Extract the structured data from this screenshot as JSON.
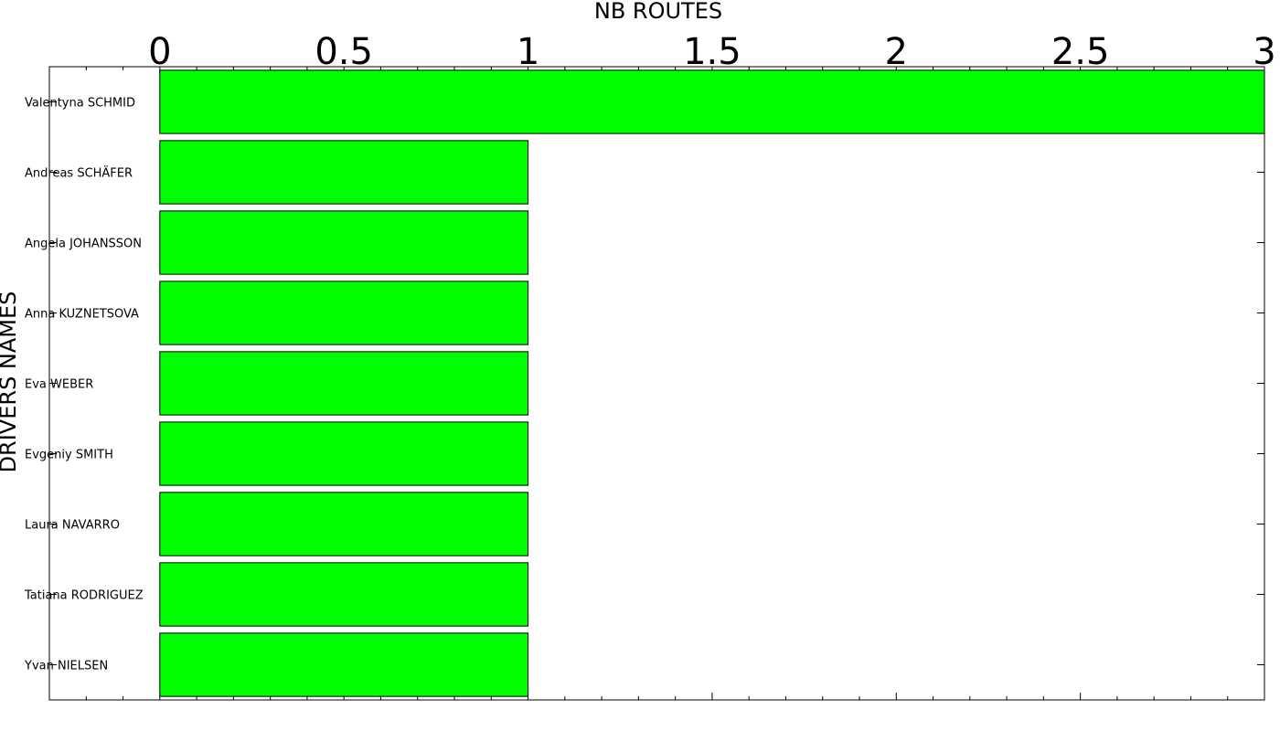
{
  "chart_data": {
    "type": "bar",
    "orientation": "horizontal",
    "xlabel": "NB ROUTES",
    "ylabel": "DRIVERS NAMES",
    "xlim": [
      -0.3,
      3.0
    ],
    "xticks": [
      0,
      0.5,
      1,
      1.5,
      2,
      2.5,
      3
    ],
    "xtick_labels": [
      "0",
      "0.5",
      "1",
      "1.5",
      "2",
      "2.5",
      "3"
    ],
    "x_axis_position": "top",
    "categories": [
      "Valentyna SCHMID",
      "Andreas SCHÄFER",
      "Angela JOHANSSON",
      "Anna KUZNETSOVA",
      "Eva WEBER",
      "Evgeniy SMITH",
      "Laura NAVARRO",
      "Tatiana RODRIGUEZ",
      "Yvan NIELSEN"
    ],
    "values": [
      3,
      1,
      1,
      1,
      1,
      1,
      1,
      1,
      1
    ],
    "bar_color": "#00ff00",
    "edge_color": "#000000",
    "grid": false,
    "legend": "none"
  }
}
